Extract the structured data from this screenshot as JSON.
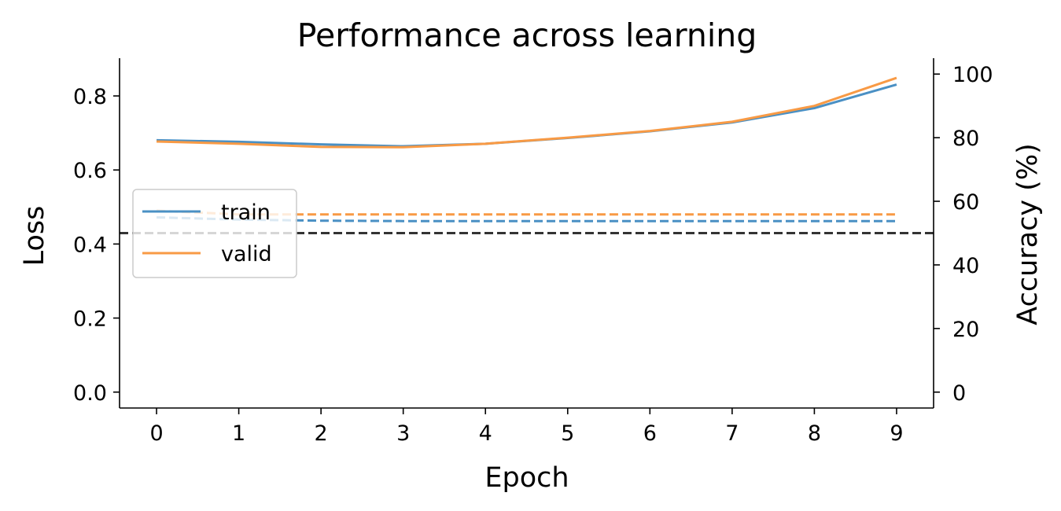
{
  "chart_data": {
    "type": "line",
    "title": "Performance across learning",
    "xlabel": "Epoch",
    "ylabel_left": "Loss",
    "ylabel_right": "Accuracy (%)",
    "x": [
      0,
      1,
      2,
      3,
      4,
      5,
      6,
      7,
      8,
      9
    ],
    "xticks": [
      "0",
      "1",
      "2",
      "3",
      "4",
      "5",
      "6",
      "7",
      "8",
      "9"
    ],
    "xlim": [
      -0.45,
      9.45
    ],
    "ylim_left": [
      -0.043,
      0.902
    ],
    "ylim_right": [
      -5,
      105
    ],
    "yticks_left": [
      "0.0",
      "0.2",
      "0.4",
      "0.6",
      "0.8"
    ],
    "yticks_right": [
      "0",
      "20",
      "40",
      "60",
      "80",
      "100"
    ],
    "legend": {
      "placement": "center-left",
      "entries": [
        "train",
        "valid"
      ]
    },
    "colors": {
      "train": "#4a90c4",
      "valid": "#f89a45",
      "chance": "#333333"
    },
    "series": [
      {
        "name": "train",
        "axis": "left",
        "style": "dashed",
        "values": [
          0.472,
          0.466,
          0.463,
          0.462,
          0.462,
          0.462,
          0.462,
          0.462,
          0.462,
          0.462
        ]
      },
      {
        "name": "valid",
        "axis": "left",
        "style": "dashed",
        "values": [
          0.49,
          0.48,
          0.48,
          0.48,
          0.48,
          0.48,
          0.48,
          0.48,
          0.48,
          0.48
        ]
      },
      {
        "name": "train",
        "axis": "right",
        "style": "solid",
        "values": [
          79.2,
          78.7,
          77.9,
          77.3,
          78.1,
          79.9,
          82.0,
          84.8,
          89.3,
          96.7
        ]
      },
      {
        "name": "valid",
        "axis": "right",
        "style": "solid",
        "values": [
          78.8,
          78.1,
          77.1,
          77.0,
          78.1,
          80.0,
          82.1,
          85.0,
          90.0,
          98.8
        ]
      }
    ],
    "reference_lines": [
      {
        "axis": "right",
        "value": 50,
        "style": "dashed"
      }
    ]
  }
}
